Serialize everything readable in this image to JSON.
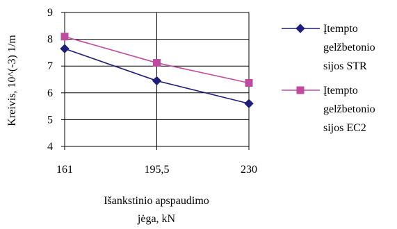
{
  "chart_data": {
    "type": "line",
    "categories": [
      "161",
      "195,5",
      "230"
    ],
    "ylim": [
      4,
      9
    ],
    "yticks": [
      4,
      5,
      6,
      7,
      8,
      9
    ],
    "grid": true,
    "ylabel": "Kreivis, 10^(-3) 1/m",
    "xlabel": [
      "Išankstinio apspaudimo",
      "jėga, kN"
    ],
    "legend_position": "right",
    "series": [
      {
        "name": [
          "Įtempto",
          "gelžbetonio",
          "sijos STR"
        ],
        "values": [
          7.65,
          6.45,
          5.6
        ],
        "color": "#1f1f7a",
        "marker": "diamond"
      },
      {
        "name": [
          "Įtempto",
          "gelžbetonio",
          "sijos EC2"
        ],
        "values": [
          8.1,
          7.12,
          6.37
        ],
        "color": "#c04aa0",
        "marker": "square"
      }
    ]
  }
}
